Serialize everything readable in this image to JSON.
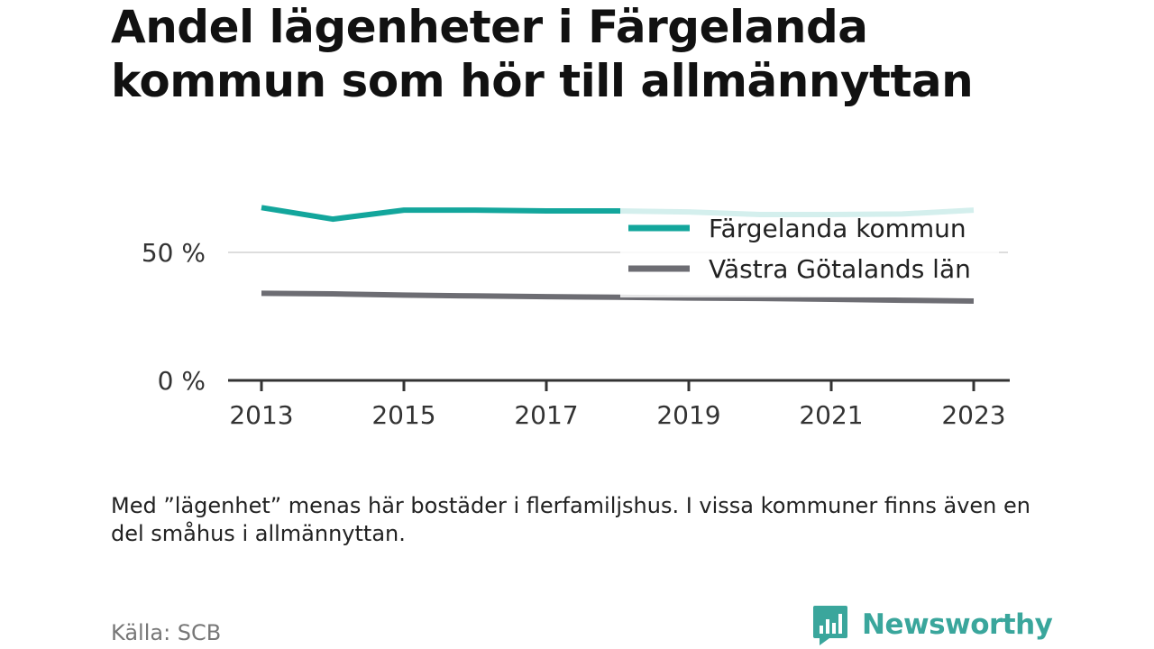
{
  "title": "Andel lägenheter i Färgelanda kommun som hör till allmännyttan",
  "note": "Med ”lägenhet” menas här bostäder i flerfamiljshus. I vissa kommuner finns även en del småhus i allmännyttan.",
  "source": "Källa: SCB",
  "brand": "Newsworthy",
  "icons": {
    "brand_logo": "newsworthy-logo-icon"
  },
  "colors": {
    "series_1": "#13a69c",
    "series_2": "#6d6d73",
    "gridline": "#dddddd",
    "axis": "#333333",
    "brand": "#3aa69c"
  },
  "chart_data": {
    "type": "line",
    "title": "Andel lägenheter i Färgelanda kommun som hör till allmännyttan",
    "xlabel": "",
    "ylabel": "",
    "x": [
      2013,
      2014,
      2015,
      2016,
      2017,
      2018,
      2019,
      2020,
      2021,
      2022,
      2023
    ],
    "series": [
      {
        "name": "Färgelanda kommun",
        "values": [
          67.5,
          63,
          66.5,
          66.5,
          66.2,
          66.2,
          65.8,
          64.8,
          64.8,
          65,
          66.5
        ]
      },
      {
        "name": "Västra Götalands län",
        "values": [
          34,
          33.8,
          33.3,
          33,
          32.7,
          32.5,
          32.2,
          32,
          31.7,
          31.3,
          31
        ]
      }
    ],
    "xlim": [
      2012,
      2024
    ],
    "ylim": [
      0,
      75
    ],
    "x_ticks": [
      2013,
      2015,
      2017,
      2019,
      2021,
      2023
    ],
    "y_ticks": [
      0,
      50
    ],
    "y_tick_labels": [
      "0 %",
      "50 %"
    ],
    "grid": true,
    "legend_position": "top-right"
  }
}
